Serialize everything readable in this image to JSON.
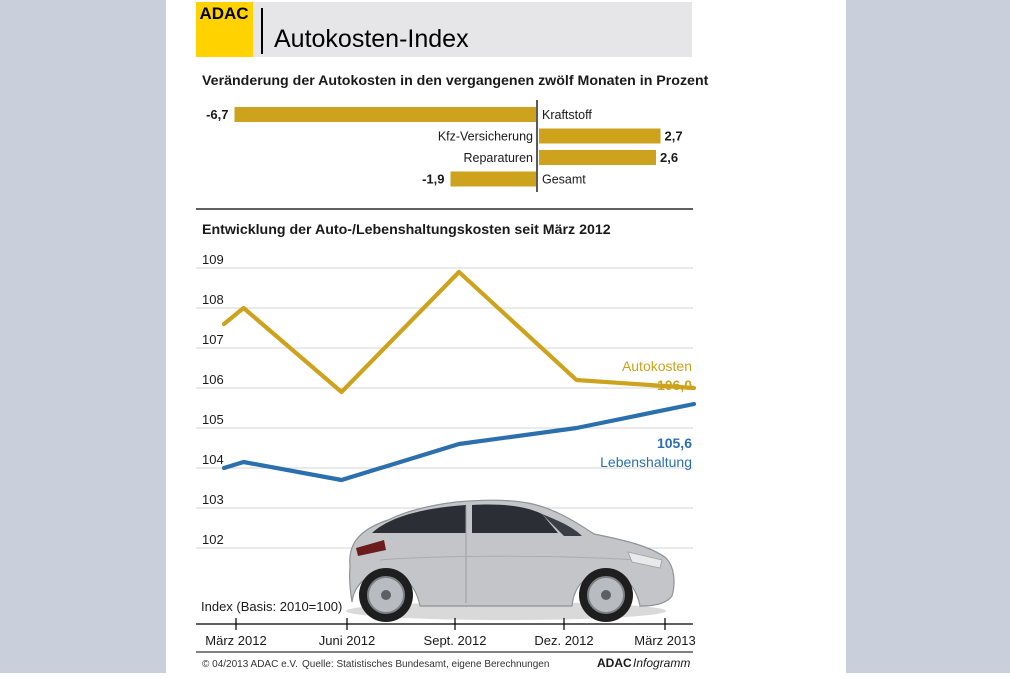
{
  "header": {
    "logo_text": "ADAC",
    "title": "Autokosten-Index"
  },
  "colors": {
    "gold": "#cda21c",
    "blue": "#2b6fad",
    "logo_yellow": "#ffd200",
    "title_bar": "#e6e6e8",
    "page_bg": "#c9cfdb"
  },
  "chart_data": [
    {
      "type": "bar",
      "orientation": "horizontal",
      "title": "Veränderung der Autokosten in den vergangenen zwölf Monaten in Prozent",
      "categories": [
        "Kraftstoff",
        "Kfz-Versicherung",
        "Reparaturen",
        "Gesamt"
      ],
      "values": [
        -6.7,
        2.7,
        2.6,
        -1.9
      ],
      "value_labels": [
        "-6,7",
        "2,7",
        "2,6",
        "-1,9"
      ]
    },
    {
      "type": "line",
      "title": "Entwicklung der Auto-/Lebenshaltungskosten seit März 2012",
      "ylabel": "Index (Basis: 2010=100)",
      "ylim": [
        101.5,
        109.2
      ],
      "y_ticks": [
        102,
        103,
        104,
        105,
        106,
        107,
        108,
        109
      ],
      "x_ticks": [
        "März 2012",
        "Juni 2012",
        "Sept. 2012",
        "Dez. 2012",
        "März 2013"
      ],
      "x": [
        0,
        0.5,
        3,
        6,
        9,
        12
      ],
      "grid": true,
      "series": [
        {
          "name": "Autokosten",
          "color": "#cda21c",
          "values": [
            107.6,
            108.0,
            105.9,
            108.9,
            106.2,
            106.0
          ],
          "end_label": "106,0"
        },
        {
          "name": "Lebenshaltung",
          "color": "#2b6fad",
          "values": [
            104.0,
            104.15,
            103.7,
            104.6,
            105.0,
            105.6
          ],
          "end_label": "105,6"
        }
      ]
    }
  ],
  "footer": {
    "copyright": "© 04/2013 ADAC e.V.",
    "source": "Quelle: Statistisches Bundesamt, eigene Berechnungen",
    "brand": "ADAC",
    "brand_suffix": "Infogramm"
  }
}
